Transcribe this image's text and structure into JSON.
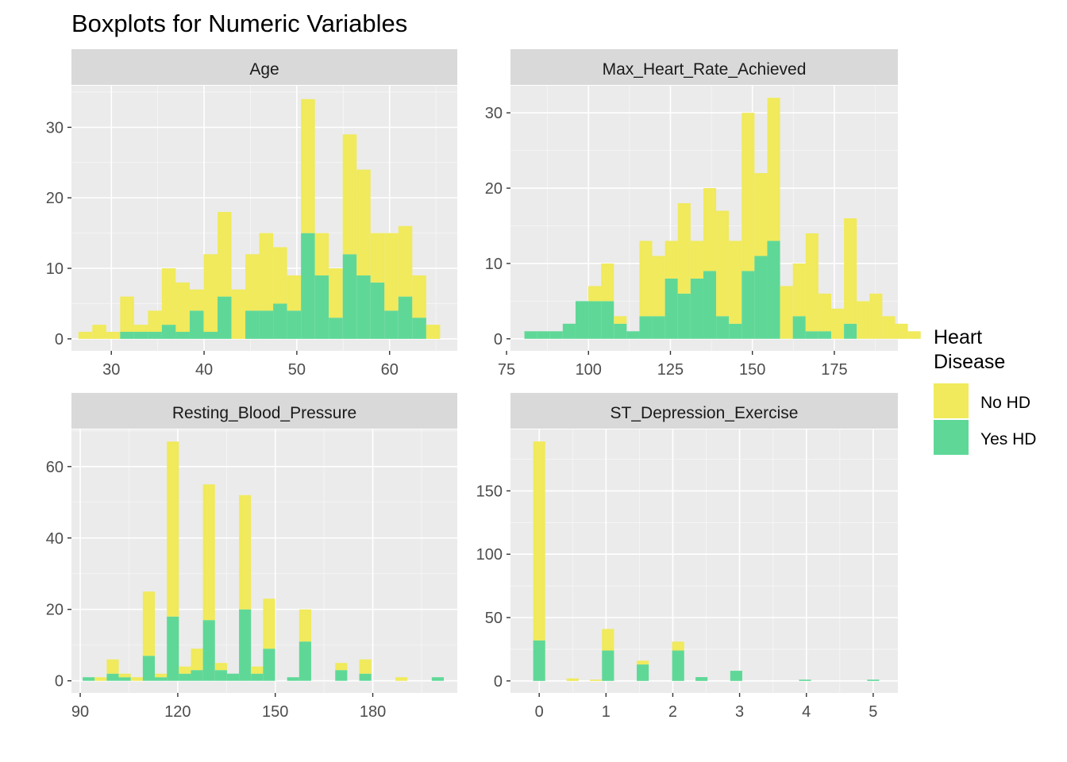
{
  "title": "Boxplots for Numeric Variables",
  "legend": {
    "title_line1": "Heart",
    "title_line2": "Disease",
    "items": [
      {
        "label": "No HD",
        "color": "#f0ea5c"
      },
      {
        "label": "Yes HD",
        "color": "#5fd897"
      }
    ]
  },
  "colors": {
    "panel_bg": "#ebebeb",
    "strip_bg": "#d9d9d9",
    "grid_major": "#ffffff",
    "no_hd": "#f0ea5c",
    "yes_hd": "#5fd897"
  },
  "chart_data": [
    {
      "type": "bar",
      "strip": "Age",
      "stacked": true,
      "xlim": [
        25.7,
        67.3
      ],
      "ylim": [
        -1.7,
        35.9
      ],
      "xticks": [
        30,
        40,
        50,
        60
      ],
      "yticks": [
        0,
        10,
        20,
        30
      ],
      "bins": [
        {
          "x": 27.2,
          "no": 1,
          "yes": 0
        },
        {
          "x": 28.7,
          "no": 2,
          "yes": 0
        },
        {
          "x": 30.2,
          "no": 1,
          "yes": 0
        },
        {
          "x": 31.7,
          "no": 5,
          "yes": 1
        },
        {
          "x": 33.2,
          "no": 1,
          "yes": 1
        },
        {
          "x": 34.7,
          "no": 3,
          "yes": 1
        },
        {
          "x": 36.2,
          "no": 8,
          "yes": 2
        },
        {
          "x": 37.7,
          "no": 7,
          "yes": 1
        },
        {
          "x": 39.2,
          "no": 3,
          "yes": 4
        },
        {
          "x": 40.7,
          "no": 11,
          "yes": 1
        },
        {
          "x": 42.2,
          "no": 12,
          "yes": 6
        },
        {
          "x": 43.7,
          "no": 7,
          "yes": 0
        },
        {
          "x": 45.2,
          "no": 8,
          "yes": 4
        },
        {
          "x": 46.7,
          "no": 11,
          "yes": 4
        },
        {
          "x": 48.2,
          "no": 8,
          "yes": 5
        },
        {
          "x": 49.7,
          "no": 5,
          "yes": 4
        },
        {
          "x": 51.2,
          "no": 19,
          "yes": 15
        },
        {
          "x": 52.7,
          "no": 6,
          "yes": 9
        },
        {
          "x": 54.2,
          "no": 7,
          "yes": 3
        },
        {
          "x": 55.7,
          "no": 17,
          "yes": 12
        },
        {
          "x": 57.2,
          "no": 15,
          "yes": 9
        },
        {
          "x": 58.7,
          "no": 7,
          "yes": 8
        },
        {
          "x": 60.2,
          "no": 11,
          "yes": 4
        },
        {
          "x": 61.7,
          "no": 10,
          "yes": 6
        },
        {
          "x": 63.2,
          "no": 6,
          "yes": 3
        },
        {
          "x": 64.7,
          "no": 2,
          "yes": 0
        }
      ]
    },
    {
      "type": "bar",
      "strip": "Max_Heart_Rate_Achieved",
      "stacked": true,
      "xlim": [
        76.2,
        194.4
      ],
      "ylim": [
        -1.6,
        33.6
      ],
      "xticks": [
        75,
        100,
        125,
        150,
        175
      ],
      "yticks": [
        0,
        10,
        20,
        30
      ],
      "bins": [
        {
          "x": 82.4,
          "no": 0,
          "yes": 1
        },
        {
          "x": 86.3,
          "no": 0,
          "yes": 1
        },
        {
          "x": 90.2,
          "no": 0,
          "yes": 1
        },
        {
          "x": 94.1,
          "no": 0,
          "yes": 2
        },
        {
          "x": 98.0,
          "no": 0,
          "yes": 5
        },
        {
          "x": 101.9,
          "no": 2,
          "yes": 5
        },
        {
          "x": 105.8,
          "no": 5,
          "yes": 5
        },
        {
          "x": 109.7,
          "no": 1,
          "yes": 2
        },
        {
          "x": 113.6,
          "no": 0,
          "yes": 1
        },
        {
          "x": 117.5,
          "no": 10,
          "yes": 3
        },
        {
          "x": 121.4,
          "no": 8,
          "yes": 3
        },
        {
          "x": 125.3,
          "no": 5,
          "yes": 8
        },
        {
          "x": 129.2,
          "no": 12,
          "yes": 6
        },
        {
          "x": 133.1,
          "no": 5,
          "yes": 8
        },
        {
          "x": 137.0,
          "no": 11,
          "yes": 9
        },
        {
          "x": 140.9,
          "no": 14,
          "yes": 3
        },
        {
          "x": 144.8,
          "no": 11,
          "yes": 2
        },
        {
          "x": 148.7,
          "no": 21,
          "yes": 9
        },
        {
          "x": 152.6,
          "no": 11,
          "yes": 11
        },
        {
          "x": 156.5,
          "no": 19,
          "yes": 13
        },
        {
          "x": 160.4,
          "no": 7,
          "yes": 0
        },
        {
          "x": 164.3,
          "no": 7,
          "yes": 3
        },
        {
          "x": 168.2,
          "no": 13,
          "yes": 1
        },
        {
          "x": 172.1,
          "no": 5,
          "yes": 1
        },
        {
          "x": 176.0,
          "no": 4,
          "yes": 0
        },
        {
          "x": 179.9,
          "no": 14,
          "yes": 2
        },
        {
          "x": 183.8,
          "no": 5,
          "yes": 0
        },
        {
          "x": 187.7,
          "no": 6,
          "yes": 0
        },
        {
          "x": 191.6,
          "no": 3,
          "yes": 0
        },
        {
          "x": 195.5,
          "no": 2,
          "yes": 0
        },
        {
          "x": 199.4,
          "no": 1,
          "yes": 0
        }
      ]
    },
    {
      "type": "bar",
      "strip": "Resting_Blood_Pressure",
      "stacked": true,
      "xlim": [
        87.3,
        206.0
      ],
      "ylim": [
        -3.4,
        70.4
      ],
      "xticks": [
        90,
        120,
        150,
        180
      ],
      "yticks": [
        0,
        20,
        40,
        60
      ],
      "bins": [
        {
          "x": 92.6,
          "no": 0,
          "yes": 1
        },
        {
          "x": 96.3,
          "no": 1,
          "yes": 0
        },
        {
          "x": 100.0,
          "no": 4,
          "yes": 2
        },
        {
          "x": 103.7,
          "no": 1,
          "yes": 1
        },
        {
          "x": 107.4,
          "no": 1,
          "yes": 0
        },
        {
          "x": 111.1,
          "no": 18,
          "yes": 7
        },
        {
          "x": 114.8,
          "no": 1,
          "yes": 1
        },
        {
          "x": 118.5,
          "no": 49,
          "yes": 18
        },
        {
          "x": 122.2,
          "no": 2,
          "yes": 2
        },
        {
          "x": 125.9,
          "no": 6,
          "yes": 3
        },
        {
          "x": 129.6,
          "no": 38,
          "yes": 17
        },
        {
          "x": 133.3,
          "no": 2,
          "yes": 3
        },
        {
          "x": 137.0,
          "no": 0,
          "yes": 2
        },
        {
          "x": 140.7,
          "no": 32,
          "yes": 20
        },
        {
          "x": 144.4,
          "no": 2,
          "yes": 2
        },
        {
          "x": 148.1,
          "no": 14,
          "yes": 9
        },
        {
          "x": 155.5,
          "no": 0,
          "yes": 1
        },
        {
          "x": 159.2,
          "no": 9,
          "yes": 11
        },
        {
          "x": 170.3,
          "no": 2,
          "yes": 3
        },
        {
          "x": 177.7,
          "no": 4,
          "yes": 2
        },
        {
          "x": 188.8,
          "no": 1,
          "yes": 0
        },
        {
          "x": 200.0,
          "no": 0,
          "yes": 1
        }
      ]
    },
    {
      "type": "bar",
      "strip": "ST_Depression_Exercise",
      "stacked": true,
      "xlim": [
        -0.43,
        5.37
      ],
      "ylim": [
        -9.5,
        198.5
      ],
      "xticks": [
        0,
        1,
        2,
        3,
        4,
        5
      ],
      "yticks": [
        0,
        50,
        100,
        150
      ],
      "bins": [
        {
          "x": 0.0,
          "no": 157,
          "yes": 32
        },
        {
          "x": 0.5,
          "no": 2,
          "yes": 0
        },
        {
          "x": 0.85,
          "no": 1,
          "yes": 0
        },
        {
          "x": 1.03,
          "no": 17,
          "yes": 24
        },
        {
          "x": 1.55,
          "no": 3,
          "yes": 13
        },
        {
          "x": 2.08,
          "no": 7,
          "yes": 24
        },
        {
          "x": 2.43,
          "no": 0,
          "yes": 3
        },
        {
          "x": 2.95,
          "no": 0,
          "yes": 8
        },
        {
          "x": 3.98,
          "no": 0,
          "yes": 1
        },
        {
          "x": 5.0,
          "no": 0,
          "yes": 1
        }
      ]
    }
  ]
}
